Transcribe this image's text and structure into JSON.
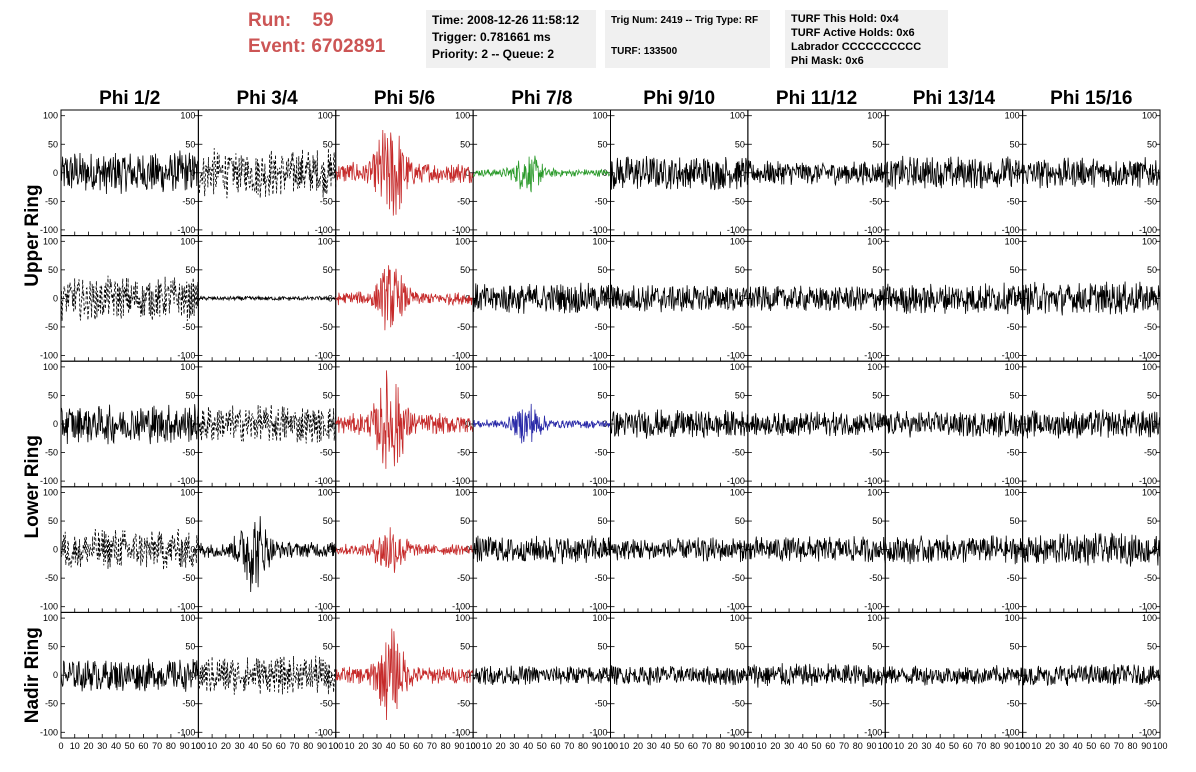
{
  "header": {
    "run_label": "Run:",
    "run_value": "59",
    "event_label": "Event:",
    "event_value": "6702891"
  },
  "info_time": {
    "time": "Time: 2008-12-26 11:58:12",
    "trigger": "Trigger: 0.781661 ms",
    "priority": "Priority: 2 -- Queue: 2"
  },
  "info_trig": {
    "trig": "Trig Num: 2419 -- Trig Type: RF",
    "turf": "TURF: 133500"
  },
  "info_turf": {
    "hold": "TURF This Hold: 0x4",
    "active": "TURF Active Holds: 0x6",
    "labrador": "Labrador CCCCCCCCCC",
    "phimask": "Phi Mask: 0x6"
  },
  "chart_data": {
    "type": "line",
    "columns": [
      "Phi 1/2",
      "Phi 3/4",
      "Phi 5/6",
      "Phi 7/8",
      "Phi 9/10",
      "Phi 11/12",
      "Phi 13/14",
      "Phi 15/16"
    ],
    "row_labels": [
      "Upper Ring",
      "Lower Ring",
      "Nadir Ring"
    ],
    "xlim": [
      0,
      100
    ],
    "ylim": [
      -110,
      110
    ],
    "x_ticks": [
      "0",
      "10",
      "20",
      "30",
      "40",
      "50",
      "60",
      "70",
      "80",
      "90",
      "100"
    ],
    "y_ticks_left": [
      "100",
      "50",
      "0",
      "-50",
      "-100"
    ],
    "y_ticks_right": [
      "100",
      "50",
      "0",
      "-50",
      "-100"
    ],
    "colors": {
      "default": "#000000",
      "red": "#c62b2b",
      "green": "#2a9a2a",
      "blue": "#2a2aa8"
    },
    "panels": [
      [
        {
          "color": "default",
          "amp": 40,
          "style": "solid",
          "burst": false
        },
        {
          "color": "default",
          "amp": 45,
          "style": "dashed",
          "burst": false
        },
        {
          "color": "red",
          "amp": 55,
          "style": "solid",
          "burst": true
        },
        {
          "color": "green",
          "amp": 20,
          "style": "solid",
          "burst": true
        },
        {
          "color": "default",
          "amp": 32,
          "style": "solid",
          "burst": false
        },
        {
          "color": "default",
          "amp": 22,
          "style": "solid",
          "burst": false
        },
        {
          "color": "default",
          "amp": 30,
          "style": "solid",
          "burst": false
        },
        {
          "color": "default",
          "amp": 28,
          "style": "solid",
          "burst": false
        }
      ],
      [
        {
          "color": "default",
          "amp": 40,
          "style": "dashed",
          "burst": false
        },
        {
          "color": "default",
          "amp": 4,
          "style": "solid",
          "burst": false
        },
        {
          "color": "red",
          "amp": 35,
          "style": "solid",
          "burst": true
        },
        {
          "color": "default",
          "amp": 28,
          "style": "solid",
          "burst": false
        },
        {
          "color": "default",
          "amp": 26,
          "style": "solid",
          "burst": false
        },
        {
          "color": "default",
          "amp": 24,
          "style": "solid",
          "burst": false
        },
        {
          "color": "default",
          "amp": 28,
          "style": "solid",
          "burst": false
        },
        {
          "color": "default",
          "amp": 30,
          "style": "solid",
          "burst": false
        }
      ],
      [
        {
          "color": "default",
          "amp": 36,
          "style": "solid",
          "burst": false
        },
        {
          "color": "default",
          "amp": 35,
          "style": "dashed",
          "burst": false
        },
        {
          "color": "red",
          "amp": 55,
          "style": "solid",
          "burst": true
        },
        {
          "color": "blue",
          "amp": 22,
          "style": "solid",
          "burst": true
        },
        {
          "color": "default",
          "amp": 26,
          "style": "solid",
          "burst": false
        },
        {
          "color": "default",
          "amp": 22,
          "style": "solid",
          "burst": false
        },
        {
          "color": "default",
          "amp": 24,
          "style": "solid",
          "burst": false
        },
        {
          "color": "default",
          "amp": 26,
          "style": "solid",
          "burst": false
        }
      ],
      [
        {
          "color": "default",
          "amp": 38,
          "style": "dashed",
          "burst": false
        },
        {
          "color": "default",
          "amp": 42,
          "style": "solid",
          "burst": true
        },
        {
          "color": "red",
          "amp": 30,
          "style": "solid",
          "burst": true
        },
        {
          "color": "default",
          "amp": 26,
          "style": "solid",
          "burst": false
        },
        {
          "color": "default",
          "amp": 22,
          "style": "solid",
          "burst": false
        },
        {
          "color": "default",
          "amp": 24,
          "style": "solid",
          "burst": false
        },
        {
          "color": "default",
          "amp": 26,
          "style": "solid",
          "burst": false
        },
        {
          "color": "default",
          "amp": 30,
          "style": "solid",
          "burst": false
        }
      ],
      [
        {
          "color": "default",
          "amp": 30,
          "style": "solid",
          "burst": false
        },
        {
          "color": "default",
          "amp": 35,
          "style": "dashed",
          "burst": false
        },
        {
          "color": "red",
          "amp": 45,
          "style": "solid",
          "burst": true
        },
        {
          "color": "default",
          "amp": 18,
          "style": "solid",
          "burst": false
        },
        {
          "color": "default",
          "amp": 18,
          "style": "solid",
          "burst": false
        },
        {
          "color": "default",
          "amp": 22,
          "style": "solid",
          "burst": false
        },
        {
          "color": "default",
          "amp": 18,
          "style": "solid",
          "burst": false
        },
        {
          "color": "default",
          "amp": 20,
          "style": "solid",
          "burst": false
        }
      ]
    ]
  }
}
